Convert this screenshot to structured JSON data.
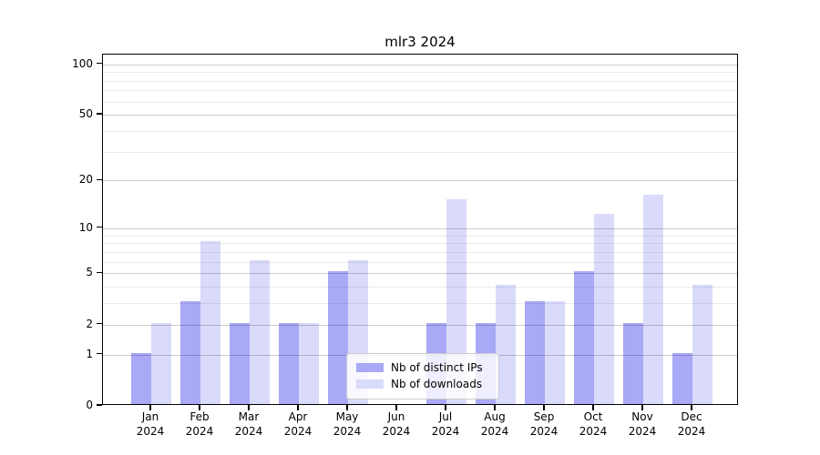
{
  "chart_data": {
    "type": "bar",
    "title": "mlr3 2024",
    "categories": [
      "Jan",
      "Feb",
      "Mar",
      "Apr",
      "May",
      "Jun",
      "Jul",
      "Aug",
      "Sep",
      "Oct",
      "Nov",
      "Dec"
    ],
    "category_year": "2024",
    "series": [
      {
        "name": "Nb of distinct IPs",
        "color": "#a9a9f7",
        "values": [
          1,
          3,
          2,
          2,
          5,
          0,
          2,
          2,
          3,
          5,
          2,
          1
        ]
      },
      {
        "name": "Nb of downloads",
        "color": "#dadafb",
        "values": [
          2,
          8,
          6,
          2,
          6,
          0,
          15,
          4,
          3,
          12,
          16,
          4
        ]
      }
    ],
    "xlabel": "",
    "ylabel": "",
    "yscale": "log1p",
    "ylim": [
      0,
      114
    ],
    "y_major_ticks": [
      0,
      1,
      2,
      5,
      10,
      20,
      50,
      100
    ],
    "y_minor_gridlines": [
      3,
      4,
      6,
      7,
      8,
      9,
      30,
      40,
      60,
      70,
      80,
      90
    ],
    "grid": true,
    "legend_position": "lower center",
    "colors": {
      "axis": "#000000",
      "major_grid": "rgba(0,0,0,0.20)",
      "minor_grid": "rgba(0,0,0,0.08)",
      "background": "#ffffff"
    }
  }
}
